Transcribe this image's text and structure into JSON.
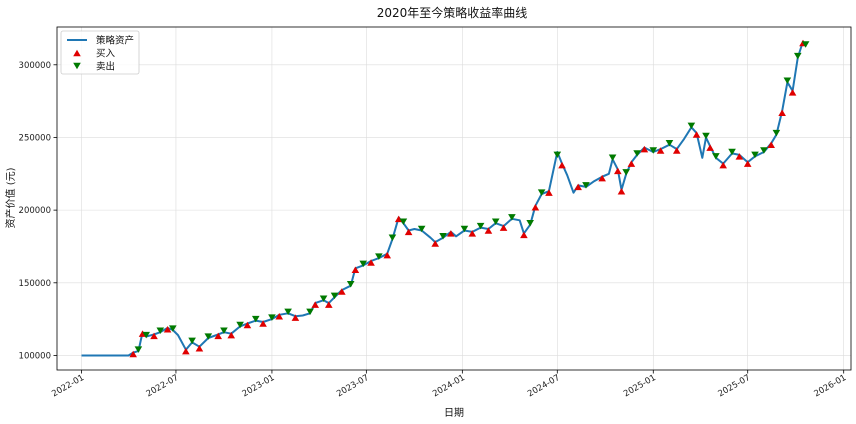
{
  "chart_data": {
    "type": "line",
    "title": "2020年至今策略收益率曲线",
    "xlabel": "日期",
    "ylabel": "资产价值 (元)",
    "x_ticks": [
      "2022-01",
      "2022-07",
      "2023-01",
      "2023-07",
      "2024-01",
      "2024-07",
      "2025-01",
      "2025-07",
      "2026-01"
    ],
    "y_ticks": [
      100000,
      150000,
      200000,
      250000,
      300000
    ],
    "xlim": [
      "2021-11-15",
      "2026-01-15"
    ],
    "ylim": [
      90000,
      326000
    ],
    "grid": true,
    "legend_position": "top-left",
    "legend": [
      {
        "key": "line",
        "label": "策略资产",
        "color": "#1f77b4",
        "marker": "line"
      },
      {
        "key": "buy",
        "label": "买入",
        "color": "#e00000",
        "marker": "triangle-up"
      },
      {
        "key": "sell",
        "label": "卖出",
        "color": "#007a00",
        "marker": "triangle-down"
      }
    ],
    "series": [
      {
        "name": "策略资产",
        "color": "#1f77b4",
        "points": [
          [
            "2022-01-01",
            100000
          ],
          [
            "2022-02-15",
            100000
          ],
          [
            "2022-04-01",
            100000
          ],
          [
            "2022-04-10",
            102000
          ],
          [
            "2022-04-20",
            103000
          ],
          [
            "2022-04-28",
            116000
          ],
          [
            "2022-05-05",
            113000
          ],
          [
            "2022-05-20",
            114500
          ],
          [
            "2022-06-01",
            116000
          ],
          [
            "2022-06-15",
            119000
          ],
          [
            "2022-06-25",
            117500
          ],
          [
            "2022-07-05",
            114000
          ],
          [
            "2022-07-20",
            104000
          ],
          [
            "2022-08-01",
            109000
          ],
          [
            "2022-08-15",
            106000
          ],
          [
            "2022-09-01",
            112000
          ],
          [
            "2022-09-20",
            114500
          ],
          [
            "2022-10-01",
            116000
          ],
          [
            "2022-10-15",
            115000
          ],
          [
            "2022-11-01",
            120000
          ],
          [
            "2022-11-15",
            122000
          ],
          [
            "2022-12-01",
            124000
          ],
          [
            "2022-12-15",
            123000
          ],
          [
            "2023-01-01",
            125000
          ],
          [
            "2023-01-15",
            128000
          ],
          [
            "2023-02-01",
            129000
          ],
          [
            "2023-02-15",
            127000
          ],
          [
            "2023-03-01",
            127500
          ],
          [
            "2023-03-15",
            129000
          ],
          [
            "2023-03-25",
            136000
          ],
          [
            "2023-04-10",
            138000
          ],
          [
            "2023-04-20",
            136000
          ],
          [
            "2023-05-01",
            140000
          ],
          [
            "2023-05-15",
            145000
          ],
          [
            "2023-06-01",
            148000
          ],
          [
            "2023-06-10",
            160000
          ],
          [
            "2023-06-25",
            162000
          ],
          [
            "2023-07-10",
            165000
          ],
          [
            "2023-07-25",
            167000
          ],
          [
            "2023-08-10",
            170000
          ],
          [
            "2023-08-20",
            180000
          ],
          [
            "2023-09-01",
            195000
          ],
          [
            "2023-09-10",
            191000
          ],
          [
            "2023-09-20",
            186000
          ],
          [
            "2023-10-01",
            187000
          ],
          [
            "2023-10-15",
            186000
          ],
          [
            "2023-11-01",
            181000
          ],
          [
            "2023-11-10",
            178000
          ],
          [
            "2023-11-25",
            181000
          ],
          [
            "2023-12-10",
            185000
          ],
          [
            "2023-12-20",
            182000
          ],
          [
            "2024-01-05",
            186000
          ],
          [
            "2024-01-20",
            185000
          ],
          [
            "2024-02-05",
            188000
          ],
          [
            "2024-02-20",
            187000
          ],
          [
            "2024-03-05",
            191000
          ],
          [
            "2024-03-20",
            189000
          ],
          [
            "2024-04-05",
            194000
          ],
          [
            "2024-04-20",
            193000
          ],
          [
            "2024-04-28",
            184000
          ],
          [
            "2024-05-10",
            190000
          ],
          [
            "2024-05-20",
            203000
          ],
          [
            "2024-06-01",
            211000
          ],
          [
            "2024-06-15",
            213000
          ],
          [
            "2024-07-01",
            240000
          ],
          [
            "2024-07-10",
            232000
          ],
          [
            "2024-07-20",
            224000
          ],
          [
            "2024-08-01",
            212000
          ],
          [
            "2024-08-10",
            217000
          ],
          [
            "2024-08-25",
            216000
          ],
          [
            "2024-09-10",
            220000
          ],
          [
            "2024-09-25",
            223000
          ],
          [
            "2024-10-08",
            225000
          ],
          [
            "2024-10-15",
            235000
          ],
          [
            "2024-10-25",
            228000
          ],
          [
            "2024-11-01",
            214000
          ],
          [
            "2024-11-10",
            225000
          ],
          [
            "2024-11-20",
            233000
          ],
          [
            "2024-12-01",
            238000
          ],
          [
            "2024-12-15",
            243000
          ],
          [
            "2025-01-01",
            240000
          ],
          [
            "2025-01-15",
            242000
          ],
          [
            "2025-02-01",
            245000
          ],
          [
            "2025-02-15",
            242000
          ],
          [
            "2025-03-01",
            249000
          ],
          [
            "2025-03-15",
            257000
          ],
          [
            "2025-03-25",
            253000
          ],
          [
            "2025-04-05",
            236000
          ],
          [
            "2025-04-12",
            250000
          ],
          [
            "2025-04-20",
            244000
          ],
          [
            "2025-05-01",
            236000
          ],
          [
            "2025-05-15",
            232000
          ],
          [
            "2025-06-01",
            239000
          ],
          [
            "2025-06-15",
            238000
          ],
          [
            "2025-07-01",
            233000
          ],
          [
            "2025-07-15",
            237000
          ],
          [
            "2025-08-01",
            240000
          ],
          [
            "2025-08-15",
            246000
          ],
          [
            "2025-08-25",
            252000
          ],
          [
            "2025-09-05",
            268000
          ],
          [
            "2025-09-15",
            288000
          ],
          [
            "2025-09-25",
            282000
          ],
          [
            "2025-10-05",
            305000
          ],
          [
            "2025-10-15",
            316000
          ],
          [
            "2025-10-20",
            313000
          ]
        ]
      }
    ],
    "buy_points": [
      [
        "2022-04-10",
        101000
      ],
      [
        "2022-04-28",
        115000
      ],
      [
        "2022-05-20",
        113500
      ],
      [
        "2022-06-15",
        118000
      ],
      [
        "2022-07-20",
        103000
      ],
      [
        "2022-08-15",
        105000
      ],
      [
        "2022-09-20",
        113500
      ],
      [
        "2022-10-15",
        114000
      ],
      [
        "2022-11-15",
        121000
      ],
      [
        "2022-12-15",
        122000
      ],
      [
        "2023-01-15",
        127000
      ],
      [
        "2023-02-15",
        126000
      ],
      [
        "2023-03-25",
        135000
      ],
      [
        "2023-04-20",
        135000
      ],
      [
        "2023-05-15",
        144000
      ],
      [
        "2023-06-10",
        159000
      ],
      [
        "2023-07-10",
        164000
      ],
      [
        "2023-08-10",
        169000
      ],
      [
        "2023-09-01",
        194000
      ],
      [
        "2023-09-20",
        185000
      ],
      [
        "2023-11-10",
        177000
      ],
      [
        "2023-12-10",
        184000
      ],
      [
        "2024-01-20",
        184000
      ],
      [
        "2024-02-20",
        186000
      ],
      [
        "2024-03-20",
        188000
      ],
      [
        "2024-04-28",
        183000
      ],
      [
        "2024-05-20",
        202000
      ],
      [
        "2024-06-15",
        212000
      ],
      [
        "2024-07-10",
        231000
      ],
      [
        "2024-08-10",
        216000
      ],
      [
        "2024-09-25",
        222000
      ],
      [
        "2024-10-25",
        227000
      ],
      [
        "2024-11-01",
        213000
      ],
      [
        "2024-11-20",
        232000
      ],
      [
        "2024-12-15",
        242000
      ],
      [
        "2025-01-15",
        241000
      ],
      [
        "2025-02-15",
        241000
      ],
      [
        "2025-03-25",
        252000
      ],
      [
        "2025-04-20",
        243000
      ],
      [
        "2025-05-15",
        231000
      ],
      [
        "2025-06-15",
        237000
      ],
      [
        "2025-07-01",
        232000
      ],
      [
        "2025-08-15",
        245000
      ],
      [
        "2025-09-05",
        267000
      ],
      [
        "2025-09-25",
        281000
      ],
      [
        "2025-10-15",
        315000
      ]
    ],
    "sell_points": [
      [
        "2022-04-20",
        104000
      ],
      [
        "2022-05-05",
        114000
      ],
      [
        "2022-06-01",
        117000
      ],
      [
        "2022-06-25",
        118500
      ],
      [
        "2022-08-01",
        110000
      ],
      [
        "2022-09-01",
        113000
      ],
      [
        "2022-10-01",
        117000
      ],
      [
        "2022-11-01",
        121000
      ],
      [
        "2022-12-01",
        125000
      ],
      [
        "2023-01-01",
        126000
      ],
      [
        "2023-02-01",
        130000
      ],
      [
        "2023-03-15",
        130000
      ],
      [
        "2023-04-10",
        139000
      ],
      [
        "2023-05-01",
        141000
      ],
      [
        "2023-06-01",
        149000
      ],
      [
        "2023-06-25",
        163000
      ],
      [
        "2023-07-25",
        168000
      ],
      [
        "2023-08-20",
        181000
      ],
      [
        "2023-09-10",
        192000
      ],
      [
        "2023-10-15",
        187000
      ],
      [
        "2023-11-25",
        182000
      ],
      [
        "2024-01-05",
        187000
      ],
      [
        "2024-02-05",
        189000
      ],
      [
        "2024-03-05",
        192000
      ],
      [
        "2024-04-05",
        195000
      ],
      [
        "2024-05-10",
        191000
      ],
      [
        "2024-06-01",
        212000
      ],
      [
        "2024-07-01",
        238000
      ],
      [
        "2024-08-25",
        217000
      ],
      [
        "2024-10-15",
        236000
      ],
      [
        "2024-11-10",
        226000
      ],
      [
        "2024-12-01",
        239000
      ],
      [
        "2025-01-01",
        241000
      ],
      [
        "2025-02-01",
        246000
      ],
      [
        "2025-03-15",
        258000
      ],
      [
        "2025-04-12",
        251000
      ],
      [
        "2025-05-01",
        237000
      ],
      [
        "2025-06-01",
        240000
      ],
      [
        "2025-07-15",
        238000
      ],
      [
        "2025-08-01",
        241000
      ],
      [
        "2025-08-25",
        253000
      ],
      [
        "2025-09-15",
        289000
      ],
      [
        "2025-10-05",
        306000
      ],
      [
        "2025-10-20",
        314000
      ]
    ]
  }
}
